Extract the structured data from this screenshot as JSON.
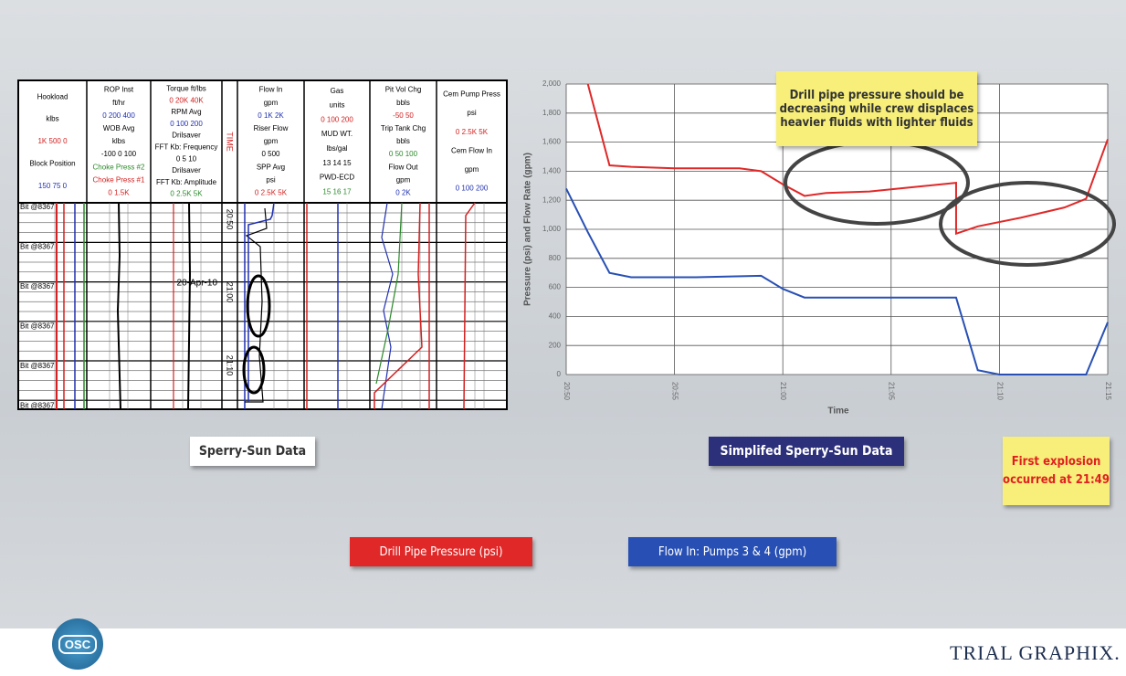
{
  "slide": {
    "mud_log": {
      "columns": [
        {
          "lines": [
            {
              "text": "Hookload",
              "color": "#000000"
            },
            {
              "text": "klbs",
              "color": "#000000"
            },
            {
              "text": "1K 500 0",
              "color": "#d42020"
            },
            {
              "text": "Block Position",
              "color": "#000000"
            },
            {
              "text": "150 75 0",
              "color": "#2030b0"
            }
          ]
        },
        {
          "lines": [
            {
              "text": "ROP Inst",
              "color": "#000000"
            },
            {
              "text": "ft/hr",
              "color": "#000000"
            },
            {
              "text": "0 200 400",
              "color": "#2030b0"
            },
            {
              "text": "WOB Avg",
              "color": "#000000"
            },
            {
              "text": "klbs",
              "color": "#000000"
            },
            {
              "text": "-100 0 100",
              "color": "#000000"
            },
            {
              "text": "Choke Press #2",
              "color": "#2a8a2a"
            },
            {
              "text": "Choke Press #1",
              "color": "#d42020"
            },
            {
              "text": "0 1.5K",
              "color": "#d42020"
            }
          ]
        },
        {
          "lines": [
            {
              "text": "Torque ft/lbs",
              "color": "#000000"
            },
            {
              "text": "0 20K 40K",
              "color": "#d42020"
            },
            {
              "text": "RPM Avg",
              "color": "#000000"
            },
            {
              "text": "0 100 200",
              "color": "#2030b0"
            },
            {
              "text": "Drilsaver",
              "color": "#000000"
            },
            {
              "text": "FFT Kb: Frequency",
              "color": "#000000"
            },
            {
              "text": "0 5 10",
              "color": "#000000"
            },
            {
              "text": "Drilsaver",
              "color": "#000000"
            },
            {
              "text": "FFT Kb: Amplitude",
              "color": "#000000"
            },
            {
              "text": "0 2.5K 5K",
              "color": "#2a8a2a"
            }
          ]
        },
        {
          "lines": [
            {
              "text": "Flow In",
              "color": "#000000"
            },
            {
              "text": "gpm",
              "color": "#000000"
            },
            {
              "text": "0 1K 2K",
              "color": "#2030b0"
            },
            {
              "text": "Riser Flow",
              "color": "#000000"
            },
            {
              "text": "gpm",
              "color": "#000000"
            },
            {
              "text": "0 500",
              "color": "#000000"
            },
            {
              "text": "SPP Avg",
              "color": "#000000"
            },
            {
              "text": "psi",
              "color": "#000000"
            },
            {
              "text": "0 2.5K 5K",
              "color": "#d42020"
            }
          ]
        },
        {
          "lines": [
            {
              "text": "Gas",
              "color": "#000000"
            },
            {
              "text": "units",
              "color": "#000000"
            },
            {
              "text": "0 100 200",
              "color": "#d42020"
            },
            {
              "text": "MUD WT.",
              "color": "#000000"
            },
            {
              "text": "lbs/gal",
              "color": "#000000"
            },
            {
              "text": "13 14 15",
              "color": "#000000"
            },
            {
              "text": "PWD-ECD",
              "color": "#000000"
            },
            {
              "text": "15 16 17",
              "color": "#2a8a2a"
            }
          ]
        },
        {
          "lines": [
            {
              "text": "Pit Vol Chg",
              "color": "#000000"
            },
            {
              "text": "bbls",
              "color": "#000000"
            },
            {
              "text": "-50 50",
              "color": "#d42020"
            },
            {
              "text": "Trip Tank Chg",
              "color": "#000000"
            },
            {
              "text": "bbls",
              "color": "#000000"
            },
            {
              "text": "0 50 100",
              "color": "#2a8a2a"
            },
            {
              "text": "Flow Out",
              "color": "#000000"
            },
            {
              "text": "gpm",
              "color": "#000000"
            },
            {
              "text": "0 2K",
              "color": "#2030b0"
            }
          ]
        },
        {
          "lines": [
            {
              "text": "Cem Pump Press",
              "color": "#000000"
            },
            {
              "text": "psi",
              "color": "#000000"
            },
            {
              "text": "0 2.5K 5K",
              "color": "#d42020"
            },
            {
              "text": "Cem Flow In",
              "color": "#000000"
            },
            {
              "text": "gpm",
              "color": "#000000"
            },
            {
              "text": "0 100 200",
              "color": "#2030b0"
            }
          ]
        }
      ],
      "time_header": "TIME",
      "depth_labels": [
        "Bit @8367",
        "Bit @8367",
        "Bit @8367",
        "Bit @8367",
        "Bit @8367",
        "Bit @8367"
      ],
      "date_label": "20-Apr-10",
      "time_labels": [
        "20:50",
        "21:00",
        "21:10"
      ]
    },
    "left_caption": "Sperry-Sun Data",
    "right_caption": "Simplifed Sperry-Sun Data",
    "explosion_note": "First explosion occurred at 21:49",
    "osc_logo": "OSC",
    "trialgraphix_logo": "TRIAL GRAPHIX."
  },
  "chart_data": {
    "type": "line",
    "annotation": "Drill pipe pressure should be decreasing while crew displaces heavier fluids with lighter fluids",
    "x_label": "Time",
    "y_label": "Pressure (psi) and Flow Rate (gpm)",
    "xlim": [
      "20:50",
      "21:15"
    ],
    "xticks": [
      "20:50",
      "20:55",
      "21:00",
      "21:05",
      "21:10",
      "21:15"
    ],
    "ylim": [
      0,
      2000
    ],
    "yticks": [
      {
        "value": 2000,
        "label": "2,000"
      },
      {
        "value": 1800,
        "label": "1,800"
      },
      {
        "value": 1600,
        "label": "1,600"
      },
      {
        "value": 1400,
        "label": "1,400"
      },
      {
        "value": 1200,
        "label": "1,200"
      },
      {
        "value": 1000,
        "label": "1,000"
      },
      800,
      600,
      400,
      200,
      0
    ],
    "grid": true,
    "series": [
      {
        "name": "Drill Pipe Pressure (psi)",
        "color": "#e02828",
        "x": [
          "20:51",
          "20:52",
          "20:53",
          "20:55",
          "20:58",
          "20:59",
          "21:00",
          "21:01",
          "21:02",
          "21:04",
          "21:06",
          "21:08",
          "21:08",
          "21:09",
          "21:11",
          "21:13",
          "21:14",
          "21:15"
        ],
        "values": [
          2000,
          1440,
          1430,
          1420,
          1420,
          1400,
          1310,
          1230,
          1250,
          1260,
          1290,
          1320,
          970,
          1020,
          1080,
          1150,
          1210,
          1620
        ]
      },
      {
        "name": "Flow In: Pumps 3 & 4 (gpm)",
        "color": "#2850b4",
        "x": [
          "20:50",
          "20:51",
          "20:52",
          "20:53",
          "20:56",
          "20:59",
          "21:00",
          "21:01",
          "21:05",
          "21:08",
          "21:09",
          "21:10",
          "21:14",
          "21:15"
        ],
        "values": [
          1280,
          980,
          700,
          670,
          670,
          680,
          590,
          530,
          530,
          530,
          30,
          0,
          0,
          360
        ]
      }
    ]
  }
}
